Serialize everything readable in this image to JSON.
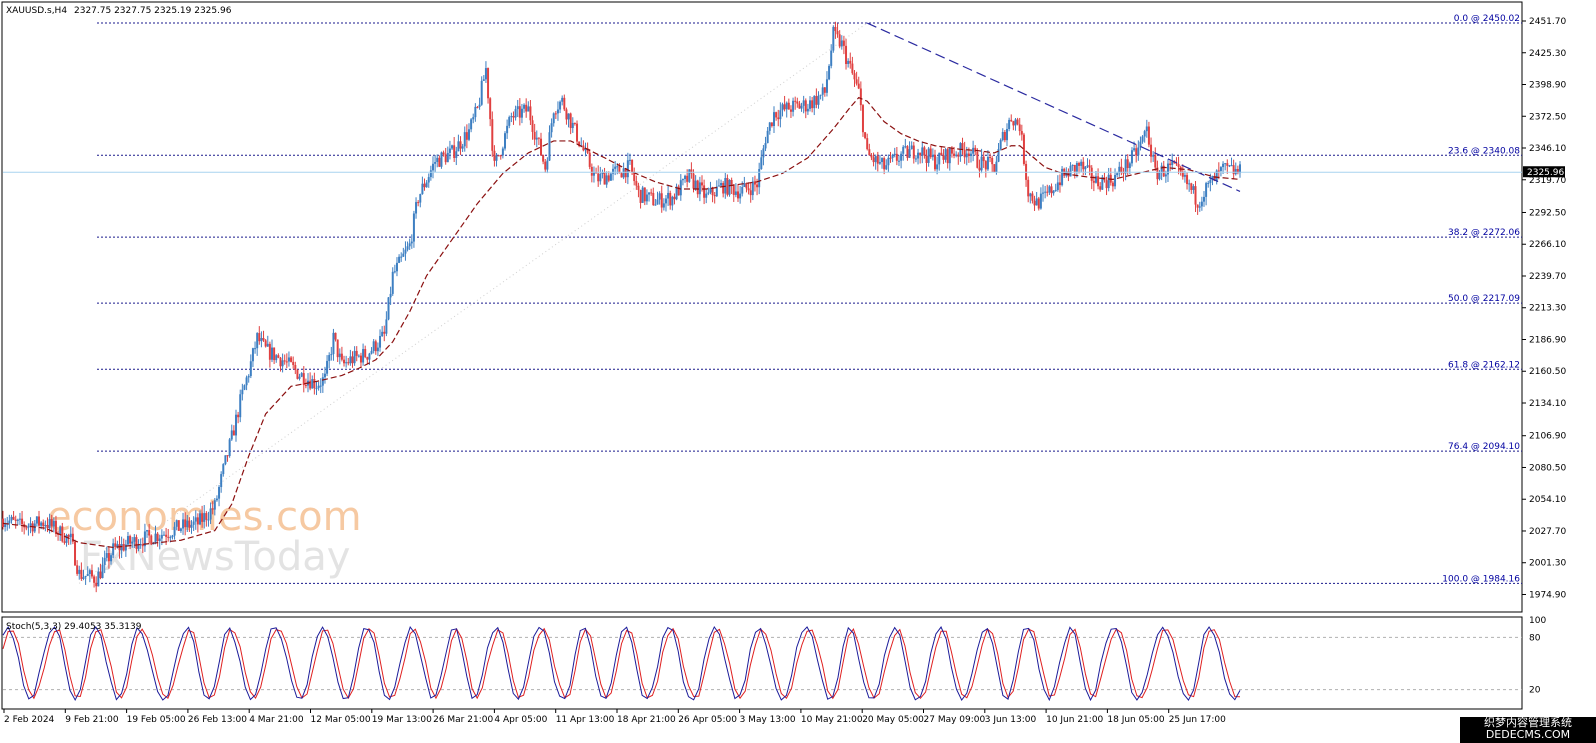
{
  "chart_data": [
    {
      "type": "candlestick",
      "header": {
        "symbol_label": "XAUUSD.s,H4",
        "ohlc_label": "2327.75 2327.75 2325.19 2325.96"
      },
      "ylim": [
        1962.0,
        2465.0
      ],
      "y_ticks": [
        "2451.70",
        "2425.30",
        "2398.90",
        "2372.50",
        "2346.10",
        "2319.70",
        "2292.50",
        "2266.10",
        "2239.70",
        "2213.30",
        "2186.90",
        "2160.50",
        "2134.10",
        "2106.90",
        "2080.50",
        "2054.10",
        "2027.70",
        "2001.30",
        "1974.90"
      ],
      "x_ticks": [
        "2 Feb 2024",
        "9 Feb 21:00",
        "19 Feb 05:00",
        "26 Feb 13:00",
        "4 Mar 21:00",
        "12 Mar 05:00",
        "19 Mar 13:00",
        "26 Mar 21:00",
        "4 Apr 05:00",
        "11 Apr 13:00",
        "18 Apr 21:00",
        "26 Apr 05:00",
        "3 May 13:00",
        "10 May 21:00",
        "20 May 05:00",
        "27 May 09:00",
        "3 Jun 13:00",
        "10 Jun 21:00",
        "18 Jun 05:00",
        "25 Jun 17:00"
      ],
      "current_price": {
        "value": 2325.96,
        "label": "2325.96"
      },
      "fib_levels": [
        {
          "value": 2450.02,
          "label": "0.0 @ 2450.02"
        },
        {
          "value": 2340.08,
          "label": "23.6 @ 2340.08"
        },
        {
          "value": 2272.06,
          "label": "38.2 @ 2272.06"
        },
        {
          "value": 2217.09,
          "label": "50.0 @ 2217.09"
        },
        {
          "value": 2162.12,
          "label": "61.8 @ 2162.12"
        },
        {
          "value": 2094.1,
          "label": "76.4 @ 2094.10"
        },
        {
          "value": 1984.16,
          "label": "100.0 @ 1984.16"
        }
      ],
      "price_path": [
        [
          0,
          2038
        ],
        [
          2,
          2032
        ],
        [
          5,
          2035
        ],
        [
          8,
          2020
        ],
        [
          9,
          1992
        ],
        [
          11,
          1988
        ],
        [
          13,
          2012
        ],
        [
          15,
          2018
        ],
        [
          17,
          2022
        ],
        [
          19,
          2026
        ],
        [
          21,
          2031
        ],
        [
          23,
          2034
        ],
        [
          25,
          2048
        ],
        [
          26,
          2078
        ],
        [
          27,
          2105
        ],
        [
          28,
          2135
        ],
        [
          29,
          2160
        ],
        [
          30,
          2188
        ],
        [
          31,
          2178
        ],
        [
          33,
          2170
        ],
        [
          35,
          2158
        ],
        [
          37,
          2150
        ],
        [
          38,
          2154
        ],
        [
          39,
          2188
        ],
        [
          40,
          2165
        ],
        [
          41,
          2170
        ],
        [
          43,
          2175
        ],
        [
          45,
          2190
        ],
        [
          46,
          2240
        ],
        [
          48,
          2265
        ],
        [
          49,
          2305
        ],
        [
          51,
          2335
        ],
        [
          53,
          2342
        ],
        [
          55,
          2360
        ],
        [
          56,
          2378
        ],
        [
          57,
          2412
        ],
        [
          58,
          2330
        ],
        [
          60,
          2372
        ],
        [
          62,
          2378
        ],
        [
          64,
          2330
        ],
        [
          65,
          2380
        ],
        [
          66,
          2385
        ],
        [
          68,
          2352
        ],
        [
          70,
          2320
        ],
        [
          72,
          2325
        ],
        [
          74,
          2330
        ],
        [
          75,
          2308
        ],
        [
          77,
          2302
        ],
        [
          79,
          2305
        ],
        [
          81,
          2322
        ],
        [
          83,
          2305
        ],
        [
          85,
          2315
        ],
        [
          87,
          2310
        ],
        [
          89,
          2316
        ],
        [
          90,
          2355
        ],
        [
          91,
          2375
        ],
        [
          93,
          2380
        ],
        [
          95,
          2382
        ],
        [
          97,
          2392
        ],
        [
          98,
          2440
        ],
        [
          99,
          2432
        ],
        [
          101,
          2392
        ],
        [
          102,
          2340
        ],
        [
          104,
          2330
        ],
        [
          106,
          2340
        ],
        [
          108,
          2345
        ],
        [
          110,
          2335
        ],
        [
          112,
          2342
        ],
        [
          114,
          2345
        ],
        [
          115,
          2335
        ],
        [
          117,
          2330
        ],
        [
          118,
          2355
        ],
        [
          119,
          2372
        ],
        [
          120,
          2365
        ],
        [
          121,
          2310
        ],
        [
          122,
          2300
        ],
        [
          123,
          2305
        ],
        [
          125,
          2322
        ],
        [
          127,
          2332
        ],
        [
          129,
          2318
        ],
        [
          131,
          2320
        ],
        [
          133,
          2335
        ],
        [
          134,
          2345
        ],
        [
          135,
          2362
        ],
        [
          136,
          2325
        ],
        [
          138,
          2330
        ],
        [
          140,
          2314
        ],
        [
          141,
          2302
        ],
        [
          142,
          2312
        ],
        [
          144,
          2328
        ],
        [
          146,
          2326
        ]
      ],
      "ema_path": [
        [
          0,
          2034
        ],
        [
          5,
          2030
        ],
        [
          9,
          2018
        ],
        [
          13,
          2014
        ],
        [
          17,
          2017
        ],
        [
          21,
          2020
        ],
        [
          25,
          2028
        ],
        [
          27,
          2050
        ],
        [
          29,
          2090
        ],
        [
          31,
          2125
        ],
        [
          34,
          2148
        ],
        [
          37,
          2152
        ],
        [
          40,
          2157
        ],
        [
          42,
          2163
        ],
        [
          44,
          2170
        ],
        [
          46,
          2185
        ],
        [
          48,
          2210
        ],
        [
          50,
          2240
        ],
        [
          53,
          2270
        ],
        [
          56,
          2300
        ],
        [
          59,
          2325
        ],
        [
          62,
          2342
        ],
        [
          65,
          2352
        ],
        [
          67,
          2352
        ],
        [
          69,
          2345
        ],
        [
          71,
          2338
        ],
        [
          74,
          2327
        ],
        [
          77,
          2318
        ],
        [
          80,
          2312
        ],
        [
          83,
          2312
        ],
        [
          86,
          2315
        ],
        [
          89,
          2318
        ],
        [
          92,
          2325
        ],
        [
          95,
          2338
        ],
        [
          98,
          2362
        ],
        [
          100,
          2380
        ],
        [
          101,
          2388
        ],
        [
          102,
          2385
        ],
        [
          104,
          2368
        ],
        [
          106,
          2358
        ],
        [
          108,
          2352
        ],
        [
          110,
          2348
        ],
        [
          113,
          2345
        ],
        [
          115,
          2344
        ],
        [
          117,
          2342
        ],
        [
          119,
          2348
        ],
        [
          120,
          2348
        ],
        [
          121,
          2342
        ],
        [
          123,
          2330
        ],
        [
          125,
          2325
        ],
        [
          128,
          2322
        ],
        [
          131,
          2320
        ],
        [
          134,
          2325
        ],
        [
          137,
          2330
        ],
        [
          140,
          2328
        ],
        [
          143,
          2322
        ],
        [
          146,
          2320
        ]
      ],
      "trendline": {
        "from": [
          102,
          2450
        ],
        "to": [
          146,
          2310
        ]
      },
      "fib_guide": {
        "from": [
          9,
          1984.16
        ],
        "to": [
          102,
          2450.02
        ]
      }
    },
    {
      "type": "line",
      "indicator_label": "Stoch(5,3,3) 29.4053 35.3139",
      "ylim": [
        0,
        100
      ],
      "y_ticks": [
        "100",
        "80",
        "20"
      ],
      "levels": [
        20,
        80
      ]
    }
  ],
  "watermark": {
    "line1": "economies.com",
    "line2": "FxNewsToday"
  },
  "corner_badge": {
    "line1": "织梦内容管理系统",
    "line2": "DEDECMS.COM"
  }
}
